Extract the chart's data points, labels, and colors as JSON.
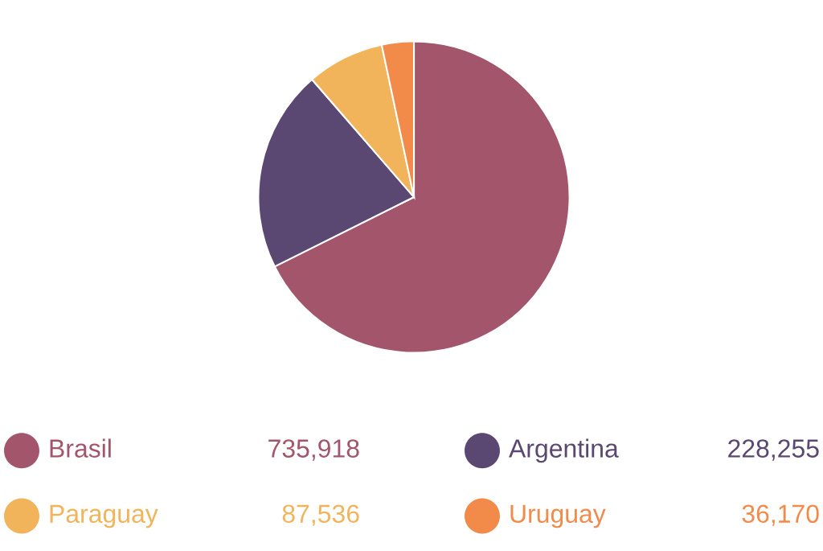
{
  "chart_data": {
    "type": "pie",
    "categories": [
      "Brasil",
      "Argentina",
      "Paraguay",
      "Uruguay"
    ],
    "values": [
      735918,
      228255,
      87536,
      36170
    ],
    "value_labels": [
      "735,918",
      "228,255",
      "87,536",
      "36,170"
    ],
    "colors": [
      "#a3566b",
      "#5a4872",
      "#f2b45a",
      "#f28a4a"
    ],
    "legend": "bottom"
  }
}
